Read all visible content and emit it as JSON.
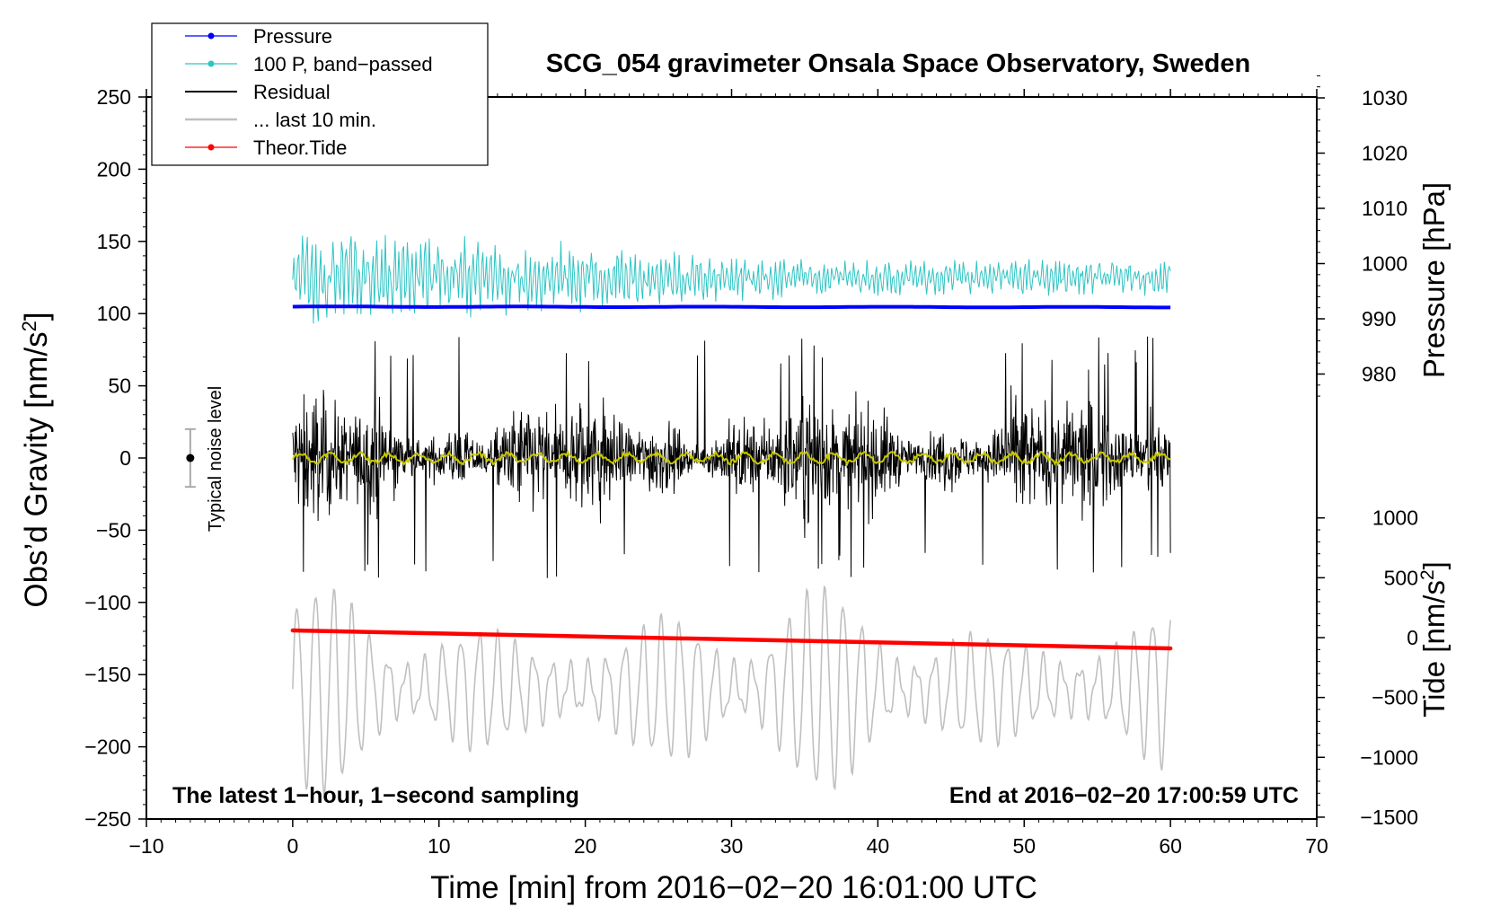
{
  "chart_data": {
    "type": "line",
    "title": "SCG_054 gravimeter Onsala Space Observatory, Sweden",
    "xlabel": "Time [min] from 2016−02−20 16:01:00 UTC",
    "ylabel_left": "Obs’d Gravity [nm/s",
    "ylabel_left_sup": "2",
    "ylabel_left_close": "]",
    "ylabel_right_pressure": "Pressure [hPa]",
    "ylabel_right_tide": "Tide [nm/s",
    "ylabel_right_tide_sup": "2",
    "ylabel_right_tide_close": "]",
    "xlim": [
      -10,
      70
    ],
    "ylim_left": [
      -250,
      250
    ],
    "pressure_axis_ticks": [
      980,
      990,
      1000,
      1010,
      1020,
      1030
    ],
    "tide_axis_ticks": [
      -1500,
      -1000,
      -500,
      0,
      500,
      1000
    ],
    "x_ticks": [
      -10,
      0,
      10,
      20,
      30,
      40,
      50,
      60,
      70
    ],
    "y_ticks": [
      -250,
      -200,
      -150,
      -100,
      -50,
      0,
      50,
      100,
      150,
      200,
      250
    ],
    "annotation_left": "The latest 1−hour, 1−second sampling",
    "annotation_right": "End at 2016−02−20 17:00:59 UTC",
    "noise_level_label": "Typical noise level",
    "noise_level": {
      "x": -7,
      "y": 0,
      "half_range": 20
    },
    "legend": [
      {
        "label": "Pressure",
        "color": "#0000ff",
        "marker": true
      },
      {
        "label": "100 P, band−passed",
        "color": "#2ec4c4",
        "marker": true
      },
      {
        "label": "Residual",
        "color": "#000000",
        "marker": false
      },
      {
        "label": "... last 10 min.",
        "color": "#c0c0c0",
        "marker": false
      },
      {
        "label": "Theor.Tide",
        "color": "#ff0000",
        "marker": true
      }
    ],
    "series": [
      {
        "name": "Pressure",
        "axis": "pressure_hPa",
        "color": "#0000ff",
        "x_range": [
          0,
          60
        ],
        "start": 992.2,
        "end": 992.1,
        "approx_level": 992.2
      },
      {
        "name": "100 P, band-passed",
        "axis": "gravity_nm_s2",
        "color": "#2ec4c4",
        "x_range": [
          0,
          60
        ],
        "mean": 125,
        "amplitude_start": 35,
        "amplitude_end": 12
      },
      {
        "name": "Residual",
        "axis": "gravity_nm_s2",
        "color": "#000000",
        "x_range": [
          0,
          60
        ],
        "mean": 0,
        "typical_amplitude": 45,
        "max_abs": 85
      },
      {
        "name": "Residual (smoothed)",
        "axis": "gravity_nm_s2",
        "color": "#c8c800",
        "x_range": [
          0,
          60
        ],
        "mean": 0,
        "amplitude": 3
      },
      {
        "name": "... last 10 min.",
        "axis": "gravity_nm_s2",
        "color": "#c0c0c0",
        "x_range": [
          0,
          60
        ],
        "mean": -160,
        "amplitude_min": 15,
        "amplitude_max": 70
      },
      {
        "name": "Theor.Tide",
        "axis": "tide_nm_s2",
        "color": "#ff0000",
        "x_range": [
          0,
          60
        ],
        "start": 60,
        "end": -90
      }
    ]
  }
}
